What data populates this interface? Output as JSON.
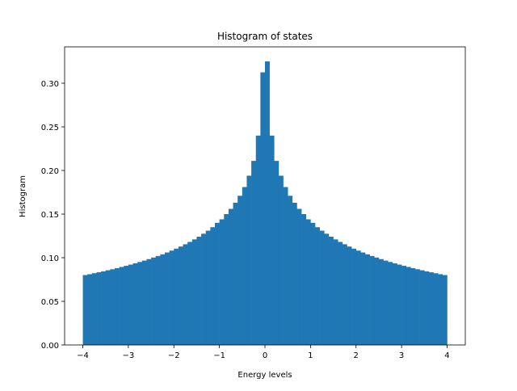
{
  "chart_data": {
    "type": "histogram",
    "title": "Histogram of states",
    "xlabel": "Energy levels",
    "ylabel": "Histogram",
    "color": "#1f77b4",
    "bins": [
      -4.0,
      -3.9,
      -3.8,
      -3.7,
      -3.6,
      -3.5,
      -3.4,
      -3.3,
      -3.2,
      -3.1,
      -3.0,
      -2.9,
      -2.8,
      -2.7,
      -2.6,
      -2.5,
      -2.4,
      -2.3,
      -2.2,
      -2.1,
      -2.0,
      -1.9,
      -1.8,
      -1.7,
      -1.6,
      -1.5,
      -1.4,
      -1.3,
      -1.2,
      -1.1,
      -1.0,
      -0.9,
      -0.8,
      -0.7,
      -0.6,
      -0.5,
      -0.4,
      -0.3,
      -0.2,
      -0.1,
      0.0,
      0.1,
      0.2,
      0.3,
      0.4,
      0.5,
      0.6,
      0.7,
      0.8,
      0.9,
      1.0,
      1.1,
      1.2,
      1.3,
      1.4,
      1.5,
      1.6,
      1.7,
      1.8,
      1.9,
      2.0,
      2.1,
      2.2,
      2.3,
      2.4,
      2.5,
      2.6,
      2.7,
      2.8,
      2.9,
      3.0,
      3.1,
      3.2,
      3.3,
      3.4,
      3.5,
      3.6,
      3.7,
      3.8,
      3.9,
      4.0
    ],
    "values": [
      0.0801,
      0.0811,
      0.0822,
      0.0833,
      0.0844,
      0.0856,
      0.0868,
      0.088,
      0.0894,
      0.0907,
      0.0921,
      0.0936,
      0.0951,
      0.0967,
      0.0984,
      0.1002,
      0.102,
      0.1039,
      0.106,
      0.1081,
      0.1104,
      0.1128,
      0.1154,
      0.1181,
      0.121,
      0.1241,
      0.1275,
      0.131,
      0.135,
      0.14,
      0.144,
      0.15,
      0.156,
      0.163,
      0.171,
      0.181,
      0.194,
      0.211,
      0.24,
      0.3125,
      0.325,
      0.24,
      0.211,
      0.194,
      0.181,
      0.171,
      0.163,
      0.156,
      0.15,
      0.144,
      0.14,
      0.135,
      0.131,
      0.1275,
      0.1241,
      0.121,
      0.1181,
      0.1154,
      0.1128,
      0.1104,
      0.1081,
      0.106,
      0.1039,
      0.102,
      0.1002,
      0.0984,
      0.0967,
      0.0951,
      0.0936,
      0.0921,
      0.0907,
      0.0894,
      0.088,
      0.0868,
      0.0856,
      0.0844,
      0.0833,
      0.0822,
      0.0811,
      0.0801
    ],
    "xlim": [
      -4.4,
      4.4
    ],
    "ylim": [
      0,
      0.3417
    ],
    "xticks": [
      {
        "value": -4,
        "label": "−4"
      },
      {
        "value": -3,
        "label": "−3"
      },
      {
        "value": -2,
        "label": "−2"
      },
      {
        "value": -1,
        "label": "−1"
      },
      0,
      1,
      2,
      3,
      4
    ],
    "yticks": [
      {
        "value": 0,
        "label": "0.00"
      },
      {
        "value": 0.05,
        "label": "0.05"
      },
      {
        "value": 0.1,
        "label": "0.10"
      },
      {
        "value": 0.15,
        "label": "0.15"
      },
      {
        "value": 0.2,
        "label": "0.20"
      },
      {
        "value": 0.25,
        "label": "0.25"
      },
      {
        "value": 0.3,
        "label": "0.30"
      }
    ]
  }
}
